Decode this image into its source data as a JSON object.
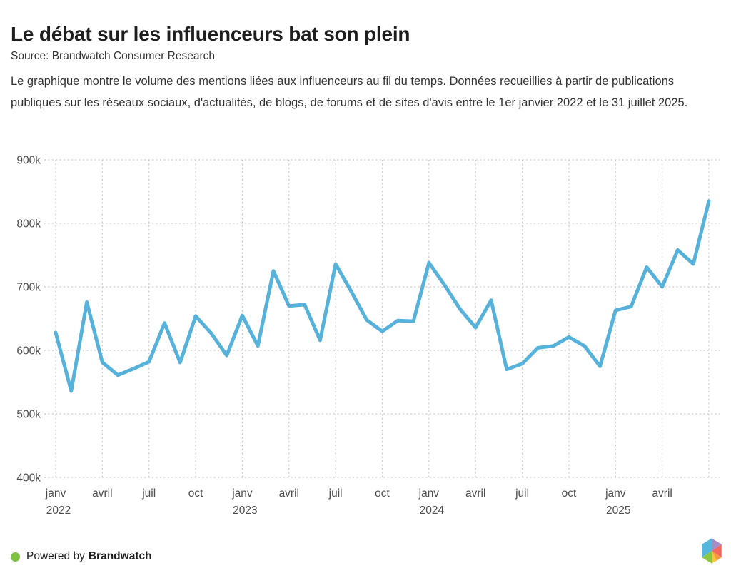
{
  "header": {
    "title": "Le débat sur les influenceurs bat son plein",
    "source": "Source: Brandwatch Consumer Research",
    "description": "Le graphique montre le volume des mentions liées aux influenceurs au fil du temps. Données recueillies à partir de publications publiques sur les réseaux sociaux, d'actualités, de blogs, de forums et de sites d'avis entre le 1er janvier 2022 et le 31 juillet 2025."
  },
  "footer": {
    "powered_by": "Powered by",
    "brand": "Brandwatch",
    "dot_color": "#7dc242",
    "logo_colors": [
      "#55b7dd",
      "#a98bc6",
      "#f4695f",
      "#f8993d",
      "#fcc33e",
      "#8dc63f"
    ]
  },
  "chart_data": {
    "type": "line",
    "title": "Le débat sur les influenceurs bat son plein",
    "subtitle": "Volume des mentions liées aux influenceurs au fil du temps",
    "unit": "mentions",
    "period": "1er janvier 2022 – 31 juillet 2025",
    "grid": "dashed",
    "legend_position": "none",
    "line_color": "#56b2da",
    "axis_label_color": "#4d4d4d",
    "grid_color": "#c9c9c9",
    "ylim": [
      400000,
      900000
    ],
    "x": [
      "2022-01",
      "2022-02",
      "2022-03",
      "2022-04",
      "2022-05",
      "2022-06",
      "2022-07",
      "2022-08",
      "2022-09",
      "2022-10",
      "2022-11",
      "2022-12",
      "2023-01",
      "2023-02",
      "2023-03",
      "2023-04",
      "2023-05",
      "2023-06",
      "2023-07",
      "2023-08",
      "2023-09",
      "2023-10",
      "2023-11",
      "2023-12",
      "2024-01",
      "2024-02",
      "2024-03",
      "2024-04",
      "2024-05",
      "2024-06",
      "2024-07",
      "2024-08",
      "2024-09",
      "2024-10",
      "2024-11",
      "2024-12",
      "2025-01",
      "2025-02",
      "2025-03",
      "2025-04",
      "2025-05",
      "2025-06",
      "2025-07"
    ],
    "series": [
      {
        "name": "Volume des mentions",
        "values": [
          628000,
          536000,
          676000,
          581000,
          561000,
          571000,
          582000,
          643000,
          581000,
          654000,
          627000,
          592000,
          655000,
          607000,
          725000,
          670000,
          672000,
          616000,
          736000,
          693000,
          648000,
          630000,
          647000,
          646000,
          738000,
          703000,
          665000,
          636000,
          679000,
          570000,
          579000,
          604000,
          607000,
          621000,
          607000,
          575000,
          663000,
          669000,
          731000,
          700000,
          758000,
          736000,
          835000
        ]
      }
    ],
    "y_ticks": [
      {
        "value": 400000,
        "label": "400k"
      },
      {
        "value": 500000,
        "label": "500k"
      },
      {
        "value": 600000,
        "label": "600k"
      },
      {
        "value": 700000,
        "label": "700k"
      },
      {
        "value": 800000,
        "label": "800k"
      },
      {
        "value": 900000,
        "label": "900k"
      }
    ],
    "x_ticks": [
      {
        "index": 0,
        "label": "janv",
        "year": "2022"
      },
      {
        "index": 3,
        "label": "avril"
      },
      {
        "index": 6,
        "label": "juil"
      },
      {
        "index": 9,
        "label": "oct"
      },
      {
        "index": 12,
        "label": "janv",
        "year": "2023"
      },
      {
        "index": 15,
        "label": "avril"
      },
      {
        "index": 18,
        "label": "juil"
      },
      {
        "index": 21,
        "label": "oct"
      },
      {
        "index": 24,
        "label": "janv",
        "year": "2024"
      },
      {
        "index": 27,
        "label": "avril"
      },
      {
        "index": 30,
        "label": "juil"
      },
      {
        "index": 33,
        "label": "oct"
      },
      {
        "index": 36,
        "label": "janv",
        "year": "2025"
      },
      {
        "index": 39,
        "label": "avril"
      },
      {
        "index": 42,
        "label": ""
      }
    ]
  }
}
